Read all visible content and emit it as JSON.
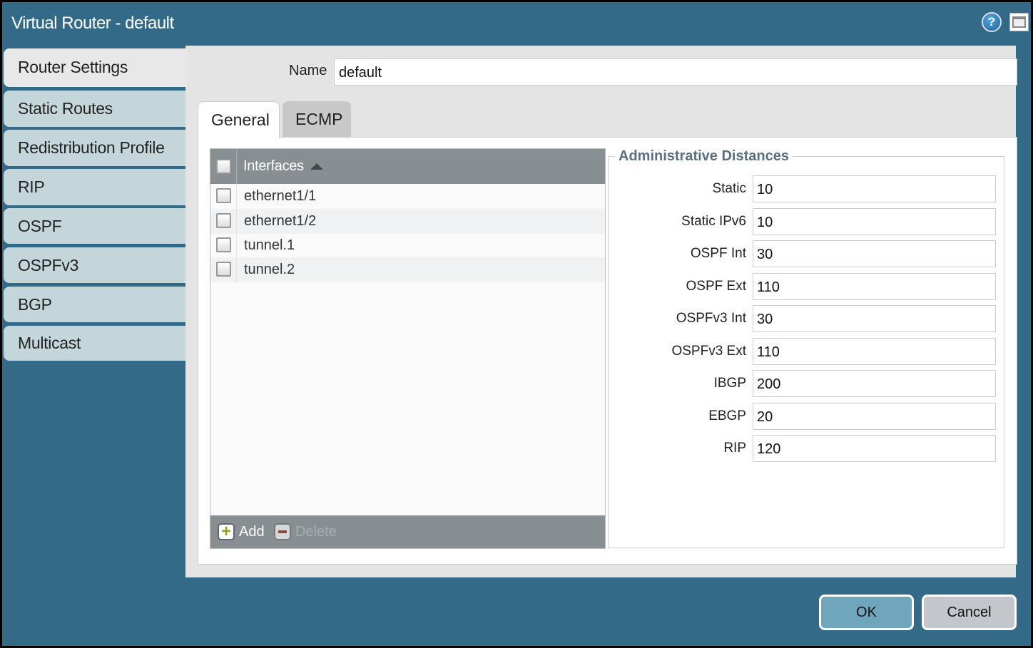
{
  "window": {
    "title": "Virtual Router - default",
    "help_icon": "help-icon",
    "maximize_icon": "maximize-icon"
  },
  "sidebar": {
    "items": [
      {
        "label": "Router Settings",
        "active": true
      },
      {
        "label": "Static Routes"
      },
      {
        "label": "Redistribution Profile"
      },
      {
        "label": "RIP"
      },
      {
        "label": "OSPF"
      },
      {
        "label": "OSPFv3"
      },
      {
        "label": "BGP"
      },
      {
        "label": "Multicast"
      }
    ]
  },
  "name": {
    "label": "Name",
    "value": "default"
  },
  "tabs": [
    {
      "label": "General",
      "active": true
    },
    {
      "label": "ECMP"
    }
  ],
  "interfaces": {
    "header": "Interfaces",
    "sort": "ascending",
    "rows": [
      "ethernet1/1",
      "ethernet1/2",
      "tunnel.1",
      "tunnel.2"
    ],
    "add_label": "Add",
    "delete_label": "Delete"
  },
  "admin": {
    "title": "Administrative Distances",
    "fields": [
      {
        "label": "Static",
        "value": "10"
      },
      {
        "label": "Static IPv6",
        "value": "10"
      },
      {
        "label": "OSPF Int",
        "value": "30"
      },
      {
        "label": "OSPF Ext",
        "value": "110"
      },
      {
        "label": "OSPFv3 Int",
        "value": "30"
      },
      {
        "label": "OSPFv3 Ext",
        "value": "110"
      },
      {
        "label": "IBGP",
        "value": "200"
      },
      {
        "label": "EBGP",
        "value": "20"
      },
      {
        "label": "RIP",
        "value": "120"
      }
    ]
  },
  "buttons": {
    "ok": "OK",
    "cancel": "Cancel"
  },
  "colors": {
    "header": "#336a87",
    "ok": "#6fa6bc",
    "cancel": "#c3c7cc"
  }
}
